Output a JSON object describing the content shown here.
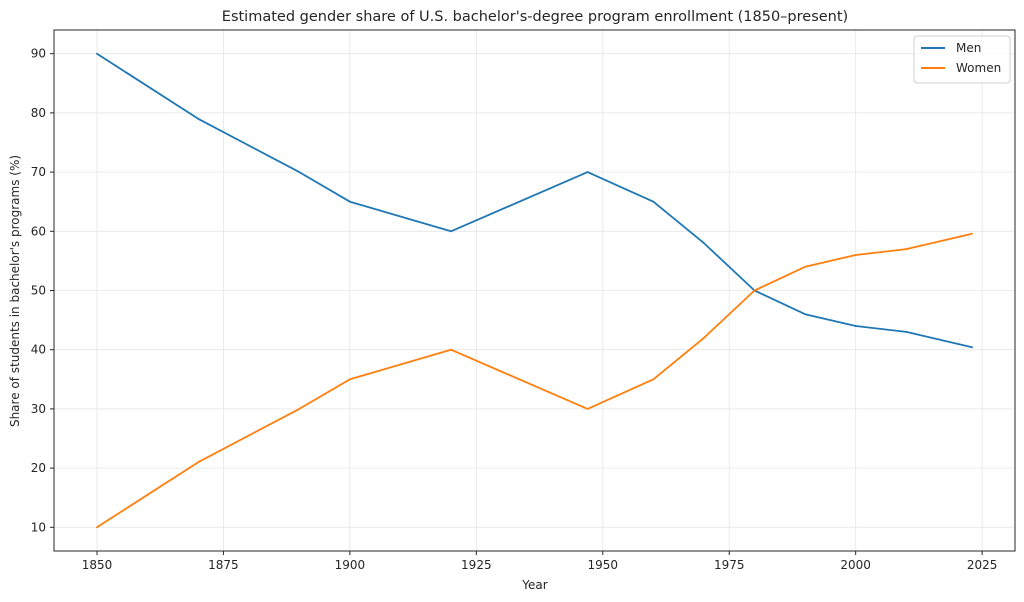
{
  "chart_data": {
    "type": "line",
    "title": "Estimated gender share of U.S. bachelor's-degree program enrollment (1850–present)",
    "xlabel": "Year",
    "ylabel": "Share of students in bachelor's programs (%)",
    "xlim": [
      1841.5,
      2031.5
    ],
    "ylim": [
      6,
      94
    ],
    "xticks": [
      1850,
      1875,
      1900,
      1925,
      1950,
      1975,
      2000,
      2025
    ],
    "yticks": [
      10,
      20,
      30,
      40,
      50,
      60,
      70,
      80,
      90
    ],
    "grid": true,
    "legend_position": "top-right",
    "x": [
      1850,
      1870,
      1890,
      1900,
      1920,
      1947,
      1960,
      1970,
      1980,
      1990,
      2000,
      2010,
      2023
    ],
    "series": [
      {
        "name": "Men",
        "color": "#1f77b4",
        "values": [
          90,
          79,
          70,
          65,
          60,
          70,
          65,
          58,
          50,
          46,
          44,
          43,
          40.4
        ]
      },
      {
        "name": "Women",
        "color": "#ff7f0e",
        "values": [
          10,
          21,
          30,
          35,
          40,
          30,
          35,
          42,
          50,
          54,
          56,
          57,
          59.6
        ]
      }
    ]
  }
}
